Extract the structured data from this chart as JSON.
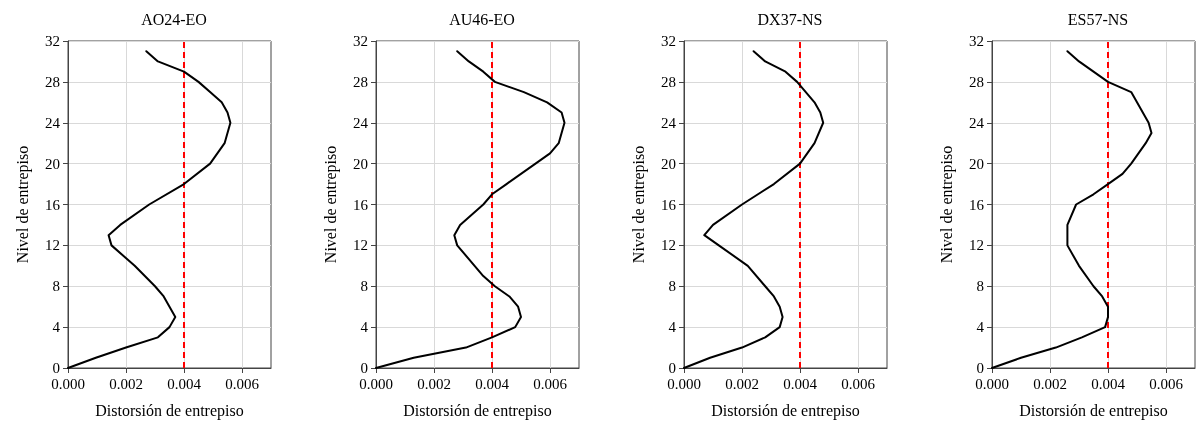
{
  "chart_data": [
    {
      "type": "line",
      "title": "AO24-EO",
      "xlabel": "Distorsión de entrepiso",
      "ylabel": "Nivel de entrepiso",
      "xlim": [
        0,
        0.007
      ],
      "xticks": [
        {
          "value": 0,
          "label": "0.000"
        },
        {
          "value": 0.002,
          "label": "0.002"
        },
        {
          "value": 0.004,
          "label": "0.004"
        },
        {
          "value": 0.006,
          "label": "0.006"
        }
      ],
      "ylim": [
        0,
        32
      ],
      "yticks": [
        0,
        4,
        8,
        12,
        16,
        20,
        24,
        28,
        32
      ],
      "grid": true,
      "marker": "none",
      "line_style": "solid",
      "series": [
        {
          "color": "#000000",
          "x": [
            0,
            0.00096,
            0.002,
            0.0031,
            0.0035,
            0.0037,
            0.0035,
            0.0033,
            0.003,
            0.0023,
            0.0015,
            0.0014,
            0.0018,
            0.0028,
            0.004,
            0.0049,
            0.0054,
            0.0056,
            0.0055,
            0.0053,
            0.0049,
            0.0045,
            0.004,
            0.0031,
            0.0027
          ],
          "values": [
            0,
            1,
            2,
            3,
            4,
            5,
            6,
            7,
            8,
            10,
            12,
            13,
            14,
            16,
            18,
            20,
            22,
            24,
            25,
            26,
            27,
            28,
            29,
            30,
            31
          ]
        }
      ],
      "ref_lines": [
        {
          "axis": "x",
          "value": 0.004,
          "color": "#ff0000",
          "line_style": "dashed"
        }
      ]
    },
    {
      "type": "line",
      "title": "AU46-EO",
      "xlabel": "Distorsión de entrepiso",
      "ylabel": "Nivel de entrepiso",
      "xlim": [
        0,
        0.007
      ],
      "xticks": [
        {
          "value": 0,
          "label": "0.000"
        },
        {
          "value": 0.002,
          "label": "0.002"
        },
        {
          "value": 0.004,
          "label": "0.004"
        },
        {
          "value": 0.006,
          "label": "0.006"
        }
      ],
      "ylim": [
        0,
        32
      ],
      "yticks": [
        0,
        4,
        8,
        12,
        16,
        20,
        24,
        28,
        32
      ],
      "grid": true,
      "marker": "none",
      "line_style": "solid",
      "series": [
        {
          "color": "#000000",
          "x": [
            0,
            0.0013,
            0.0031,
            0.004,
            0.0048,
            0.005,
            0.0049,
            0.0046,
            0.0041,
            0.0037,
            0.0034,
            0.0028,
            0.0027,
            0.0029,
            0.0037,
            0.004,
            0.0045,
            0.0055,
            0.006,
            0.0063,
            0.0065,
            0.0064,
            0.0059,
            0.0051,
            0.0041,
            0.0037,
            0.0032,
            0.0028
          ],
          "values": [
            0,
            1,
            2,
            3,
            4,
            5,
            6,
            7,
            8,
            9,
            10,
            12,
            13,
            14,
            16,
            17,
            18,
            20,
            21,
            22,
            24,
            25,
            26,
            27,
            28,
            29,
            30,
            31
          ]
        }
      ],
      "ref_lines": [
        {
          "axis": "x",
          "value": 0.004,
          "color": "#ff0000",
          "line_style": "dashed"
        }
      ]
    },
    {
      "type": "line",
      "title": "DX37-NS",
      "xlabel": "Distorsión de entrepiso",
      "ylabel": "Nivel de entrepiso",
      "xlim": [
        0,
        0.007
      ],
      "xticks": [
        {
          "value": 0,
          "label": "0.000"
        },
        {
          "value": 0.002,
          "label": "0.002"
        },
        {
          "value": 0.004,
          "label": "0.004"
        },
        {
          "value": 0.006,
          "label": "0.006"
        }
      ],
      "ylim": [
        0,
        32
      ],
      "yticks": [
        0,
        4,
        8,
        12,
        16,
        20,
        24,
        28,
        32
      ],
      "grid": true,
      "marker": "none",
      "line_style": "solid",
      "series": [
        {
          "color": "#000000",
          "x": [
            0,
            0.0009,
            0.002,
            0.0028,
            0.0033,
            0.0034,
            0.0033,
            0.0031,
            0.0028,
            0.0022,
            0.0012,
            0.0007,
            0.001,
            0.002,
            0.0031,
            0.004,
            0.0045,
            0.0048,
            0.0047,
            0.0045,
            0.0039,
            0.0035,
            0.0028,
            0.0024
          ],
          "values": [
            0,
            1,
            2,
            3,
            4,
            5,
            6,
            7,
            8,
            10,
            12,
            13,
            14,
            16,
            18,
            20,
            22,
            24,
            25,
            26,
            28,
            29,
            30,
            31
          ]
        }
      ],
      "ref_lines": [
        {
          "axis": "x",
          "value": 0.004,
          "color": "#ff0000",
          "line_style": "dashed"
        }
      ]
    },
    {
      "type": "line",
      "title": "ES57-NS",
      "xlabel": "Distorsión de entrepiso",
      "ylabel": "Nivel de entrepiso",
      "xlim": [
        0,
        0.007
      ],
      "xticks": [
        {
          "value": 0,
          "label": "0.000"
        },
        {
          "value": 0.002,
          "label": "0.002"
        },
        {
          "value": 0.004,
          "label": "0.004"
        },
        {
          "value": 0.006,
          "label": "0.006"
        }
      ],
      "ylim": [
        0,
        32
      ],
      "yticks": [
        0,
        4,
        8,
        12,
        16,
        20,
        24,
        28,
        32
      ],
      "grid": true,
      "marker": "none",
      "line_style": "solid",
      "series": [
        {
          "color": "#000000",
          "x": [
            0,
            0.001,
            0.0022,
            0.0031,
            0.0039,
            0.004,
            0.004,
            0.0038,
            0.0035,
            0.003,
            0.0026,
            0.0026,
            0.0026,
            0.0029,
            0.0035,
            0.004,
            0.0045,
            0.0048,
            0.0053,
            0.0055,
            0.0054,
            0.005,
            0.0048,
            0.004,
            0.0035,
            0.003,
            0.0026
          ],
          "values": [
            0,
            1,
            2,
            3,
            4,
            5,
            6,
            7,
            8,
            10,
            12,
            13,
            14,
            16,
            17,
            18,
            19,
            20,
            22,
            23,
            24,
            26,
            27,
            28,
            29,
            30,
            31
          ]
        }
      ],
      "ref_lines": [
        {
          "axis": "x",
          "value": 0.004,
          "color": "#ff0000",
          "line_style": "dashed"
        }
      ]
    }
  ]
}
